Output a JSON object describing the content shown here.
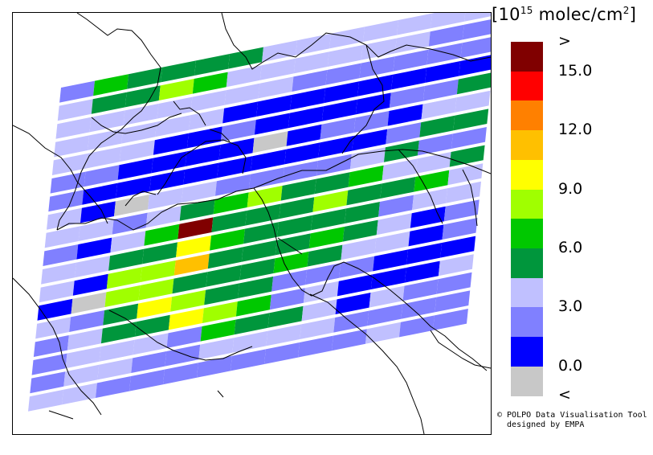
{
  "legend": {
    "title_base": "[10",
    "title_exp": "15",
    "title_unit": " molec/cm",
    "title_exp2": "2",
    "title_close": "]",
    "bins": [
      {
        "color": "#800000",
        "label": ">"
      },
      {
        "color": "#ff0000",
        "label": "15.0"
      },
      {
        "color": "#ff8000",
        "label": ""
      },
      {
        "color": "#ffc000",
        "label": "12.0"
      },
      {
        "color": "#ffff00",
        "label": ""
      },
      {
        "color": "#a0ff00",
        "label": "9.0"
      },
      {
        "color": "#00c800",
        "label": ""
      },
      {
        "color": "#00963c",
        "label": "6.0"
      },
      {
        "color": "#c0c0ff",
        "label": ""
      },
      {
        "color": "#8080ff",
        "label": "3.0"
      },
      {
        "color": "#0000ff",
        "label": ""
      },
      {
        "color": "#c8c8c8",
        "label": "0.0"
      },
      {
        "color": "",
        "label": "<"
      }
    ]
  },
  "swath": {
    "columns": 13,
    "rows": [
      [
        9,
        6,
        7,
        7,
        7,
        7,
        8,
        8,
        8,
        8,
        8,
        8,
        8
      ],
      [
        8,
        7,
        7,
        5,
        6,
        8,
        8,
        8,
        8,
        8,
        8,
        9,
        9
      ],
      [
        8,
        8,
        8,
        8,
        8,
        8,
        8,
        9,
        9,
        9,
        9,
        9,
        9
      ],
      [
        8,
        8,
        8,
        8,
        8,
        10,
        10,
        10,
        10,
        10,
        10,
        10,
        10
      ],
      [
        8,
        8,
        8,
        10,
        10,
        9,
        10,
        10,
        10,
        10,
        9,
        9,
        7
      ],
      [
        9,
        9,
        10,
        10,
        10,
        10,
        11,
        10,
        9,
        9,
        10,
        8,
        8
      ],
      [
        9,
        10,
        10,
        10,
        10,
        10,
        10,
        10,
        10,
        10,
        9,
        7,
        7
      ],
      [
        8,
        10,
        11,
        8,
        8,
        9,
        9,
        9,
        9,
        8,
        7,
        9,
        9
      ],
      [
        8,
        8,
        9,
        8,
        7,
        6,
        5,
        7,
        7,
        6,
        8,
        8,
        7
      ],
      [
        9,
        10,
        8,
        6,
        0,
        7,
        7,
        7,
        5,
        7,
        7,
        6,
        8
      ],
      [
        8,
        8,
        7,
        7,
        4,
        6,
        7,
        7,
        7,
        7,
        9,
        8,
        8
      ],
      [
        8,
        10,
        5,
        5,
        3,
        7,
        7,
        7,
        6,
        7,
        8,
        10,
        9
      ],
      [
        10,
        11,
        5,
        5,
        7,
        7,
        7,
        6,
        7,
        8,
        8,
        10,
        9
      ],
      [
        8,
        9,
        7,
        4,
        5,
        7,
        7,
        9,
        9,
        9,
        10,
        10,
        10
      ],
      [
        9,
        8,
        7,
        7,
        4,
        5,
        6,
        9,
        8,
        10,
        10,
        10,
        8
      ],
      [
        9,
        8,
        8,
        8,
        9,
        6,
        7,
        7,
        8,
        10,
        8,
        9,
        9
      ],
      [
        9,
        8,
        8,
        9,
        9,
        8,
        8,
        8,
        8,
        9,
        9,
        9,
        9
      ],
      [
        8,
        8,
        9,
        9,
        9,
        9,
        9,
        9,
        9,
        9,
        8,
        9,
        9
      ]
    ]
  },
  "credit": "© POLPO Data Visualisation Tool\n  designed by EMPA"
}
